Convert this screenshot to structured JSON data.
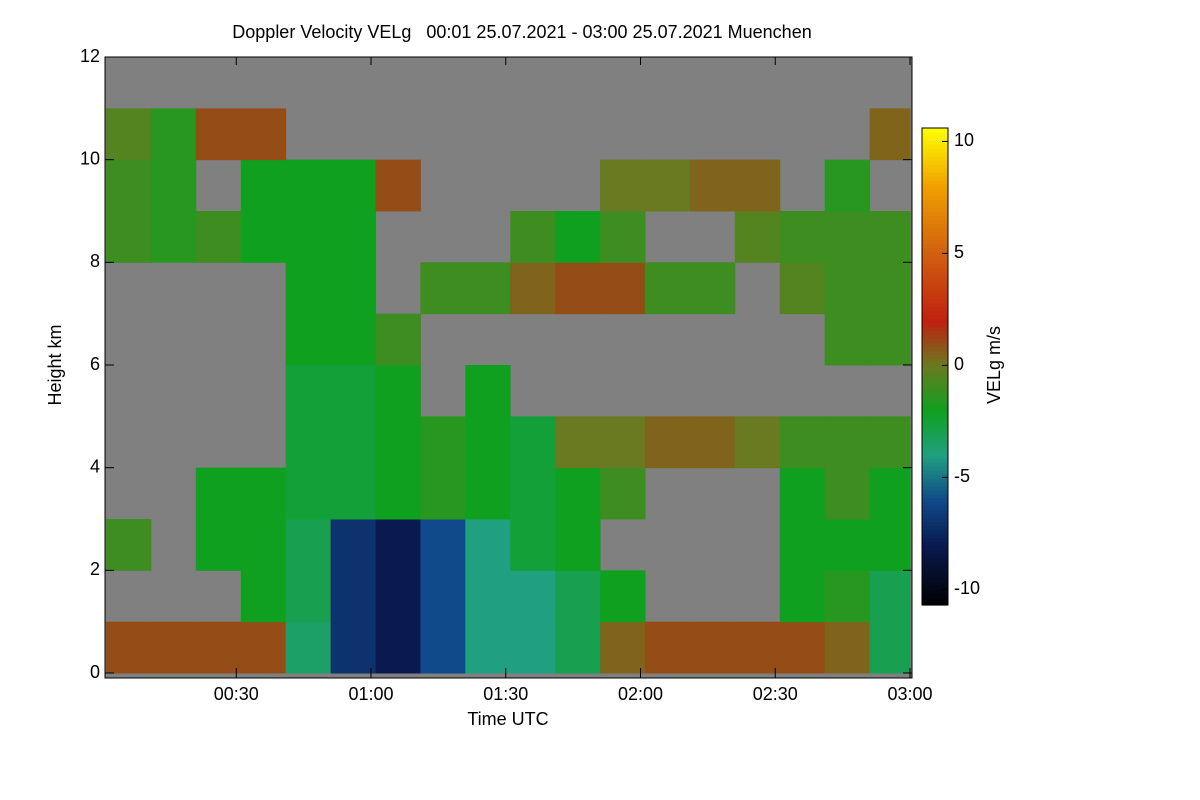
{
  "chart_data": {
    "type": "heatmap",
    "title": "Doppler Velocity VELg   00:01 25.07.2021 - 03:00 25.07.2021 Muenchen",
    "x_label": "Time UTC",
    "y_label": "Height km",
    "colorbar_label": "VELg m/s",
    "xlim": [
      1,
      180
    ],
    "ylim": [
      0,
      12
    ],
    "xticks": [
      {
        "value": 30,
        "label": "00:30"
      },
      {
        "value": 60,
        "label": "01:00"
      },
      {
        "value": 90,
        "label": "01:30"
      },
      {
        "value": 120,
        "label": "02:00"
      },
      {
        "value": 150,
        "label": "02:30"
      },
      {
        "value": 180,
        "label": "03:00"
      }
    ],
    "yticks": [
      0,
      2,
      4,
      6,
      8,
      10,
      12
    ],
    "clim": [
      -10.7,
      10.6
    ],
    "cticks": [
      -10,
      -5,
      0,
      5,
      10
    ],
    "background_color": "#808080",
    "colorscale": [
      [
        -10.7,
        "#000000"
      ],
      [
        -8,
        "#0a1a50"
      ],
      [
        -6,
        "#104a8a"
      ],
      [
        -4,
        "#20a080"
      ],
      [
        -2,
        "#10a020"
      ],
      [
        0,
        "#6a7a20"
      ],
      [
        2,
        "#c02010"
      ],
      [
        5,
        "#d06010"
      ],
      [
        8,
        "#f0a000"
      ],
      [
        10.6,
        "#ffff00"
      ]
    ],
    "x_bins": [
      1,
      11,
      21,
      31,
      41,
      51,
      61,
      71,
      81,
      91,
      101,
      111,
      121,
      131,
      141,
      151,
      161,
      171,
      180
    ],
    "y_bins": [
      0,
      1,
      2,
      3,
      4,
      5,
      6,
      7,
      8,
      9,
      10,
      11,
      12
    ],
    "z": [
      [
        1,
        null,
        -1,
        null,
        null,
        null,
        null,
        null,
        -1,
        -1,
        -0.5,
        null
      ],
      [
        1,
        null,
        null,
        null,
        null,
        null,
        null,
        null,
        -1.5,
        -1.5,
        -1.5,
        null
      ],
      [
        1,
        null,
        -2,
        -2,
        null,
        null,
        null,
        null,
        -1,
        null,
        1,
        null
      ],
      [
        1,
        -2,
        -2,
        -2,
        null,
        null,
        null,
        null,
        -2,
        -2,
        1,
        null
      ],
      [
        -3.5,
        -3,
        -3,
        -2.5,
        -2.5,
        -2.5,
        -2,
        -2,
        -2,
        -2,
        null,
        null
      ],
      [
        -7,
        -7,
        -7,
        -2.5,
        -2.5,
        -2.5,
        -2,
        -2,
        -2,
        -2,
        null,
        null
      ],
      [
        -8,
        -8,
        -8,
        -2,
        -2,
        -2,
        -1,
        null,
        null,
        1,
        null,
        null
      ],
      [
        -6,
        -6,
        -6,
        -1.5,
        -1.5,
        null,
        null,
        -1,
        null,
        null,
        null,
        null
      ],
      [
        -4,
        -4,
        -4,
        -2,
        -2,
        -2,
        null,
        -1,
        null,
        null,
        null,
        null
      ],
      [
        -4,
        -4,
        -2.5,
        -2.5,
        -2.5,
        null,
        null,
        0.5,
        -1,
        null,
        null,
        null
      ],
      [
        -3,
        -3,
        -2,
        -2,
        0,
        null,
        null,
        1,
        -2,
        null,
        null,
        null
      ],
      [
        0.5,
        -2,
        null,
        -1,
        0,
        null,
        null,
        1,
        -1,
        0,
        null,
        null
      ],
      [
        1,
        null,
        null,
        null,
        0.5,
        null,
        null,
        -1,
        null,
        0,
        null,
        null
      ],
      [
        1,
        null,
        null,
        null,
        0.5,
        null,
        null,
        -1,
        null,
        0.5,
        null,
        null
      ],
      [
        1,
        null,
        null,
        null,
        0,
        null,
        null,
        null,
        -0.5,
        0.5,
        null,
        null
      ],
      [
        1,
        -2,
        -2,
        -2,
        -1,
        null,
        null,
        -0.5,
        -1,
        null,
        null,
        null
      ],
      [
        0.5,
        -1.5,
        -2,
        -1,
        -1,
        null,
        -1,
        -1,
        -1,
        -1.5,
        null,
        null
      ],
      [
        -3,
        -3,
        -2,
        -2,
        -1,
        null,
        -1,
        -1,
        -1,
        null,
        0.5,
        null
      ]
    ]
  }
}
